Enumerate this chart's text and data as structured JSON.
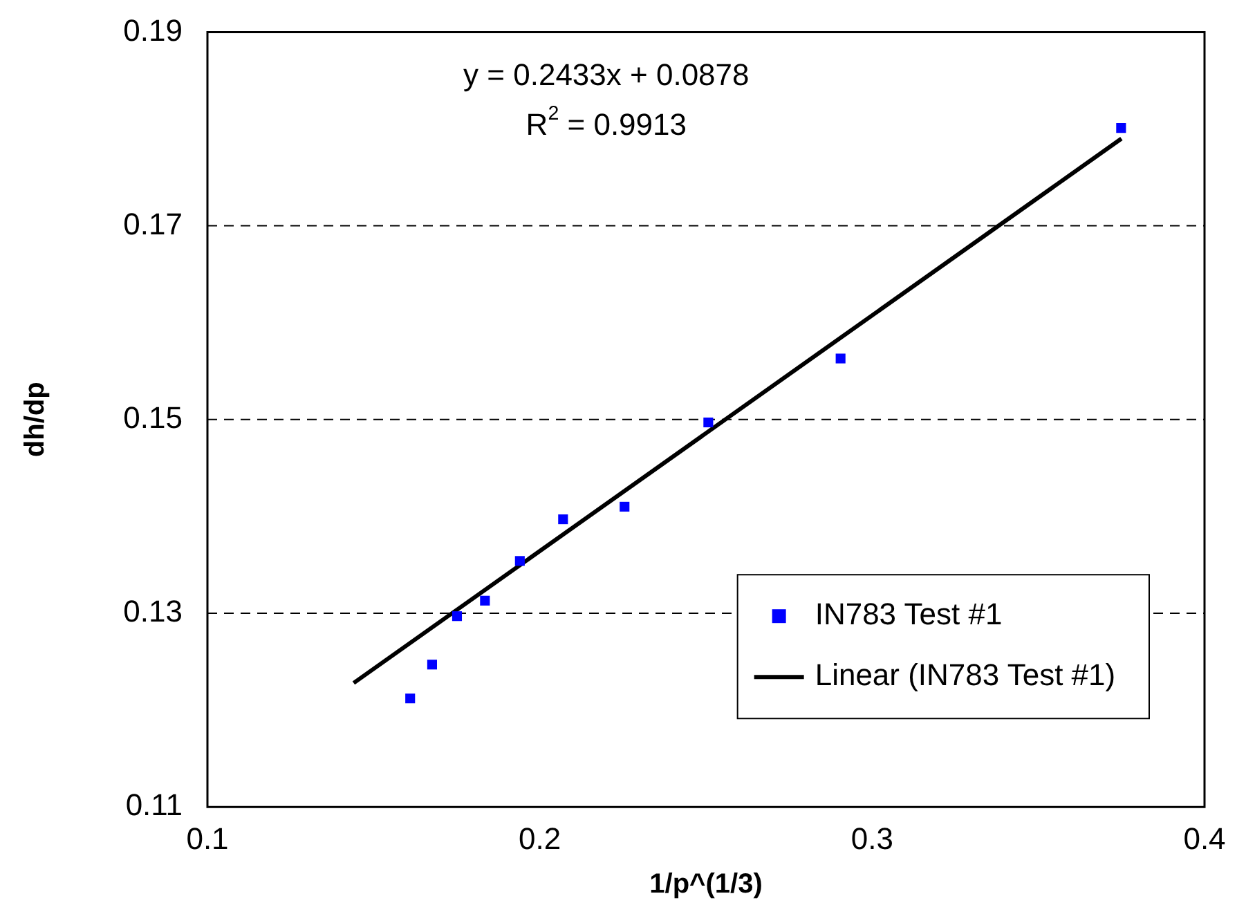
{
  "chart_data": {
    "type": "scatter",
    "xlabel": "1/p^(1/3)",
    "ylabel": "dh/dp",
    "xlim": [
      0.1,
      0.4
    ],
    "xticks": [
      0.1,
      0.2,
      0.3,
      0.4
    ],
    "ylim": [
      0.11,
      0.19
    ],
    "yticks": [
      0.11,
      0.13,
      0.15,
      0.17,
      0.19
    ],
    "grid": "y",
    "legend": "bottom right",
    "marker": "square",
    "series": [
      {
        "name": "IN783 Test #1",
        "color": "#0000ff",
        "x": [
          0.161,
          0.1676,
          0.1751,
          0.1835,
          0.194,
          0.207,
          0.2255,
          0.2507,
          0.2905,
          0.3749
        ],
        "values": [
          0.1212,
          0.1247,
          0.1297,
          0.1313,
          0.1354,
          0.1397,
          0.141,
          0.1497,
          0.1563,
          0.1801
        ]
      },
      {
        "name": "Linear (IN783 Test #1)",
        "type": "line",
        "color": "#000000",
        "line_style": "solid",
        "marker": "none",
        "x": [
          0.144,
          0.375
        ],
        "values": [
          0.1228,
          0.179
        ]
      }
    ],
    "annotations": [
      "y = 0.2433x + 0.0878",
      "R$^{2}$ = 0.9913"
    ]
  }
}
